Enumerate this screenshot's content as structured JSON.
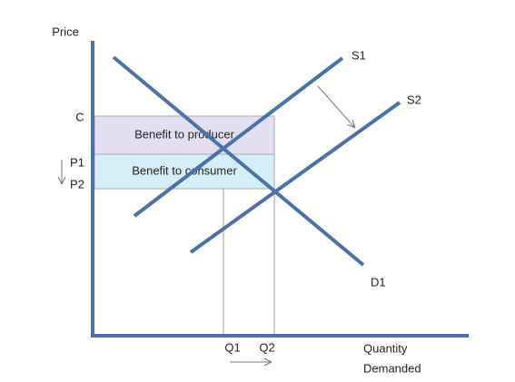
{
  "axes": {
    "y_label": "Price",
    "x_label": [
      "Quantity",
      "Demanded"
    ]
  },
  "price_labels": [
    "C",
    "P1",
    "P2"
  ],
  "quantity_labels": [
    "Q1",
    "Q2"
  ],
  "curves": {
    "supply_1": "S1",
    "supply_2": "S2",
    "demand": "D1"
  },
  "regions": {
    "producer": "Benefit to producer",
    "consumer": "Benefit to consumer"
  }
}
